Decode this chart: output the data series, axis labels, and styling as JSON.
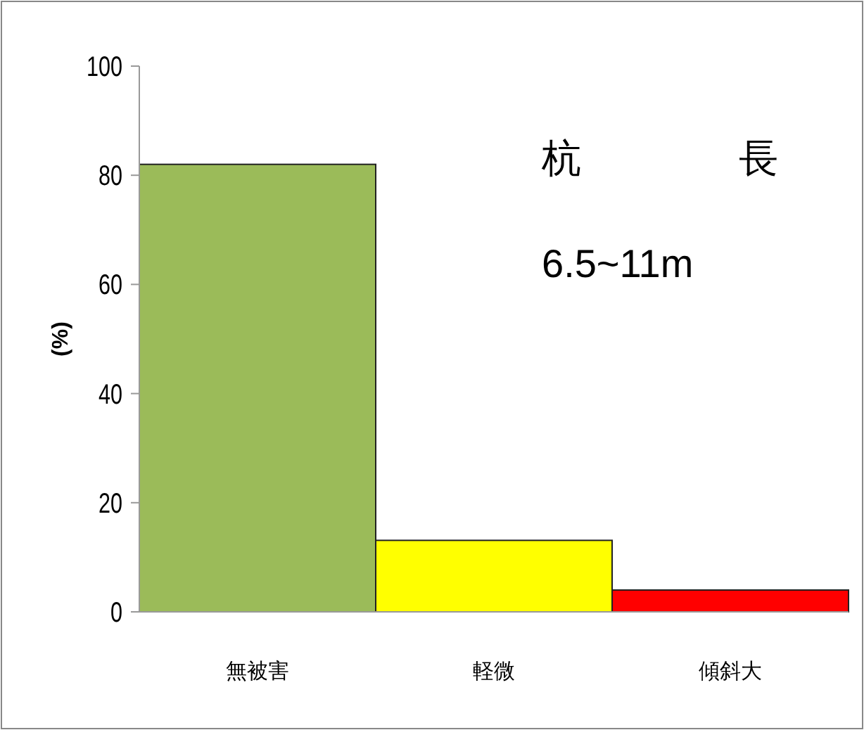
{
  "chart_data": {
    "type": "bar",
    "categories": [
      "無被害",
      "軽微",
      "傾斜大"
    ],
    "values": [
      82,
      13.1,
      4
    ],
    "colors": [
      "#9bbb59",
      "#ffff00",
      "#ff0000"
    ],
    "ylabel": "(%)",
    "ylim": [
      0,
      100
    ],
    "yticks": [
      0,
      20,
      40,
      60,
      80,
      100
    ],
    "annotations": [
      "杭　　　　長",
      "6.5~11m"
    ]
  }
}
